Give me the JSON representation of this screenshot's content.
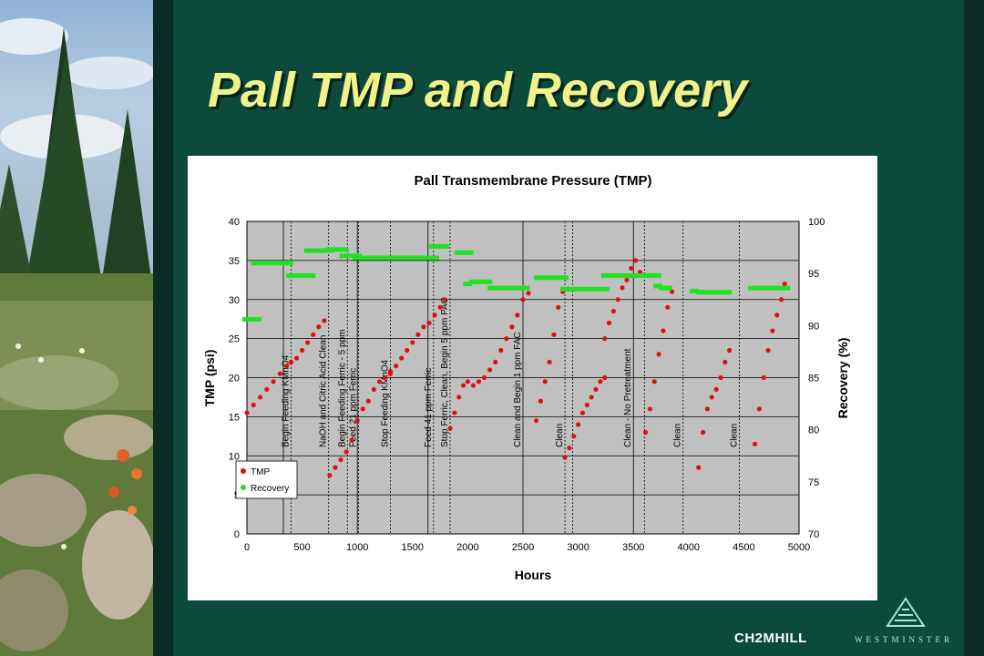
{
  "slide": {
    "title": "Pall TMP and Recovery",
    "logo_ch2m": "CH2MHILL",
    "logo_westminster": "WESTMINSTER"
  },
  "colors": {
    "tmp": "#e01010",
    "recovery": "#22e022",
    "plot_bg": "#c0c0c0",
    "title": "#f2f28a"
  },
  "chart_data": {
    "type": "scatter",
    "title": "Pall Transmembrane Pressure (TMP)",
    "xlabel": "Hours",
    "ylabel": "TMP (psi)",
    "y2label": "Recovery (%)",
    "xlim": [
      0,
      5000
    ],
    "ylim": [
      0,
      40
    ],
    "y2lim": [
      70,
      100
    ],
    "xticks": [
      "0",
      "500",
      "1000",
      "1500",
      "2000",
      "2500",
      "3000",
      "3500",
      "4000",
      "4500",
      "5000"
    ],
    "yticks": [
      "0",
      "5",
      "10",
      "15",
      "20",
      "25",
      "30",
      "35",
      "40"
    ],
    "y2ticks": [
      "70",
      "75",
      "80",
      "85",
      "90",
      "95",
      "100"
    ],
    "grid": true,
    "legend": "bottom-left",
    "legend_entries": [
      "TMP",
      "Recovery"
    ],
    "events": [
      {
        "x": 400,
        "label": "Begin Feeding KMnO4",
        "style": "dotted"
      },
      {
        "x": 740,
        "label": "NaOH and Citric Acid Clean",
        "style": "dotted"
      },
      {
        "x": 910,
        "label": "Begin Feeding Ferric - 5 ppm",
        "style": "dotted"
      },
      {
        "x": 1010,
        "label": "Feed 21 ppm Ferric",
        "style": "dotted"
      },
      {
        "x": 1300,
        "label": "Stop Feeding KMnO4",
        "style": "dotted"
      },
      {
        "x": 1690,
        "label": "Feed 41 ppm Ferric",
        "style": "dotted"
      },
      {
        "x": 1840,
        "label": "Stop Ferric, Clean, Begin 5 ppm PAC",
        "style": "dotted"
      },
      {
        "x": 2500,
        "label": "Clean and Begin 1 ppm FAC",
        "style": "solid"
      },
      {
        "x": 2880,
        "label": "Clean",
        "style": "dotted"
      },
      {
        "x": 3500,
        "label": "Clean - No Pretreatment",
        "style": "solid"
      },
      {
        "x": 3600,
        "label": "",
        "style": "dotted"
      },
      {
        "x": 3950,
        "label": "Clean",
        "style": "dotted"
      },
      {
        "x": 4460,
        "label": "Clean",
        "style": "dotted"
      }
    ],
    "extra_vlines": [
      {
        "x": 330,
        "style": "solid"
      },
      {
        "x": 1000,
        "style": "solid"
      },
      {
        "x": 1640,
        "style": "solid"
      },
      {
        "x": 2950,
        "style": "dotted"
      }
    ],
    "series": [
      {
        "name": "TMP",
        "axis": "left",
        "segments": [
          {
            "x": [
              0,
              60,
              120,
              180,
              240,
              300,
              360,
              400
            ],
            "y": [
              15.5,
              16.5,
              17.5,
              18.5,
              19.5,
              20.5,
              21.5,
              22.0
            ]
          },
          {
            "x": [
              400,
              450,
              500,
              550,
              600,
              650,
              700
            ],
            "y": [
              22.0,
              22.5,
              23.5,
              24.5,
              25.5,
              26.5,
              27.3
            ]
          },
          {
            "x": [
              750,
              800,
              850,
              900,
              950,
              1000,
              1050,
              1100,
              1150,
              1200,
              1250,
              1300
            ],
            "y": [
              7.5,
              8.5,
              9.5,
              10.5,
              12.0,
              14.5,
              16.0,
              17.0,
              18.5,
              19.5,
              20.0,
              20.5
            ]
          },
          {
            "x": [
              1300,
              1350,
              1400,
              1450,
              1500,
              1550,
              1600,
              1650,
              1700,
              1750,
              1790
            ],
            "y": [
              20.8,
              21.5,
              22.5,
              23.5,
              24.5,
              25.5,
              26.5,
              27.0,
              28.0,
              29.0,
              30.0
            ]
          },
          {
            "x": [
              1840,
              1880,
              1920,
              1960,
              2000,
              2050,
              2100,
              2150,
              2200,
              2250,
              2300,
              2350,
              2400,
              2450,
              2500,
              2550
            ],
            "y": [
              13.5,
              15.5,
              17.5,
              19.0,
              19.5,
              19.0,
              19.5,
              20.0,
              21.0,
              22.0,
              23.5,
              25.0,
              26.5,
              28.0,
              30.0,
              30.8
            ]
          },
          {
            "x": [
              2620,
              2660,
              2700,
              2740,
              2780,
              2820,
              2860
            ],
            "y": [
              14.5,
              17.0,
              19.5,
              22.0,
              25.5,
              29.0,
              31.0
            ]
          },
          {
            "x": [
              2880,
              2920,
              2960,
              3000,
              3040,
              3080,
              3120,
              3160,
              3200,
              3240
            ],
            "y": [
              9.8,
              11.0,
              12.5,
              14.0,
              15.5,
              16.5,
              17.5,
              18.5,
              19.5,
              20.0
            ]
          },
          {
            "x": [
              3240,
              3280,
              3320,
              3360,
              3400,
              3440,
              3480,
              3520,
              3560
            ],
            "y": [
              25.0,
              27.0,
              28.5,
              30.0,
              31.5,
              32.5,
              34.0,
              35.0,
              33.5
            ]
          },
          {
            "x": [
              3610,
              3650,
              3690,
              3730,
              3770,
              3810,
              3850
            ],
            "y": [
              13.0,
              16.0,
              19.5,
              23.0,
              26.0,
              29.0,
              31.0
            ]
          },
          {
            "x": [
              4090,
              4130,
              4170,
              4210,
              4250,
              4290,
              4330,
              4370
            ],
            "y": [
              8.5,
              13.0,
              16.0,
              17.5,
              18.5,
              20.0,
              22.0,
              23.5
            ]
          },
          {
            "x": [
              4600,
              4640,
              4680,
              4720,
              4760,
              4800,
              4840,
              4870
            ],
            "y": [
              11.5,
              16.0,
              20.0,
              23.5,
              26.0,
              28.0,
              30.0,
              32.0
            ]
          }
        ]
      },
      {
        "name": "Recovery",
        "axis": "right",
        "segments": [
          {
            "x": [
              0,
              30,
              60,
              90
            ],
            "y": [
              90.6,
              90.6,
              90.6,
              90.6
            ]
          },
          {
            "x": [
              80,
              140,
              200,
              260,
              320,
              380
            ],
            "y": [
              96.0,
              96.0,
              96.0,
              96.0,
              96.0,
              96.0
            ]
          },
          {
            "x": [
              400,
              460,
              520,
              580
            ],
            "y": [
              94.8,
              94.8,
              94.8,
              94.8
            ]
          },
          {
            "x": [
              560,
              620,
              680,
              740
            ],
            "y": [
              97.2,
              97.2,
              97.2,
              97.2
            ]
          },
          {
            "x": [
              760,
              820,
              880
            ],
            "y": [
              97.3,
              97.3,
              97.3
            ]
          },
          {
            "x": [
              880,
              940,
              1000
            ],
            "y": [
              96.7,
              96.7,
              96.7
            ]
          },
          {
            "x": [
              1000,
              1060,
              1120,
              1180,
              1240,
              1300,
              1360,
              1420,
              1480,
              1540,
              1600,
              1660,
              1700
            ],
            "y": [
              96.5,
              96.5,
              96.5,
              96.5,
              96.5,
              96.5,
              96.5,
              96.5,
              96.5,
              96.5,
              96.5,
              96.5,
              96.5
            ]
          },
          {
            "x": [
              1690,
              1740,
              1790
            ],
            "y": [
              97.6,
              97.6,
              97.6
            ]
          },
          {
            "x": [
              1920,
              1970,
              2010
            ],
            "y": [
              97.0,
              97.0,
              97.0
            ]
          },
          {
            "x": [
              2000,
              2060,
              2120,
              2180
            ],
            "y": [
              94.0,
              94.2,
              94.2,
              94.2
            ]
          },
          {
            "x": [
              2220,
              2280,
              2340,
              2400,
              2460,
              2520
            ],
            "y": [
              93.6,
              93.6,
              93.6,
              93.6,
              93.6,
              93.6
            ]
          },
          {
            "x": [
              2640,
              2700,
              2760,
              2820,
              2870
            ],
            "y": [
              94.6,
              94.6,
              94.6,
              94.6,
              94.6
            ]
          },
          {
            "x": [
              2880,
              2940,
              3000,
              3060,
              3120,
              3180,
              3240
            ],
            "y": [
              93.5,
              93.5,
              93.5,
              93.5,
              93.5,
              93.5,
              93.5
            ]
          },
          {
            "x": [
              3250,
              3310,
              3370,
              3430,
              3490,
              3550
            ],
            "y": [
              94.8,
              94.8,
              94.8,
              94.8,
              94.8,
              94.8
            ]
          },
          {
            "x": [
              3610,
              3660,
              3710
            ],
            "y": [
              94.8,
              94.8,
              94.8
            ]
          },
          {
            "x": [
              3720,
              3770,
              3810
            ],
            "y": [
              93.8,
              93.6,
              93.6
            ]
          },
          {
            "x": [
              4050,
              4110,
              4170,
              4230,
              4290,
              4350
            ],
            "y": [
              93.3,
              93.2,
              93.2,
              93.2,
              93.2,
              93.2
            ]
          },
          {
            "x": [
              4580,
              4640,
              4700,
              4760,
              4820,
              4880
            ],
            "y": [
              93.6,
              93.6,
              93.6,
              93.6,
              93.6,
              93.6
            ]
          }
        ]
      }
    ]
  }
}
